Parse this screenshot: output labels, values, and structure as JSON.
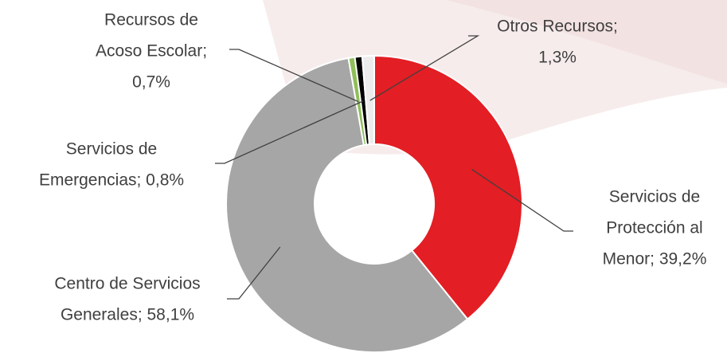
{
  "chart_data": {
    "type": "donut",
    "categories": [
      "Servicios de Protección al Menor",
      "Centro de Servicios Generales",
      "Recursos de Acoso Escolar",
      "Servicios de Emergencias",
      "Otros Recursos"
    ],
    "values": [
      39.2,
      58.1,
      0.7,
      0.8,
      1.3
    ],
    "value_labels": [
      [
        "Servicios de",
        "Protección al",
        "Menor; 39,2%"
      ],
      [
        "Centro de Servicios",
        "Generales; 58,1%"
      ],
      [
        "Recursos de",
        "Acoso Escolar;",
        "0,7%"
      ],
      [
        "Servicios de",
        "Emergencias; 0,8%"
      ],
      [
        "Otros Recursos;",
        "1,3%"
      ]
    ],
    "colors": [
      "#e31e24",
      "#a6a6a6",
      "#8fbe5a",
      "#000000",
      "#ececec"
    ]
  }
}
